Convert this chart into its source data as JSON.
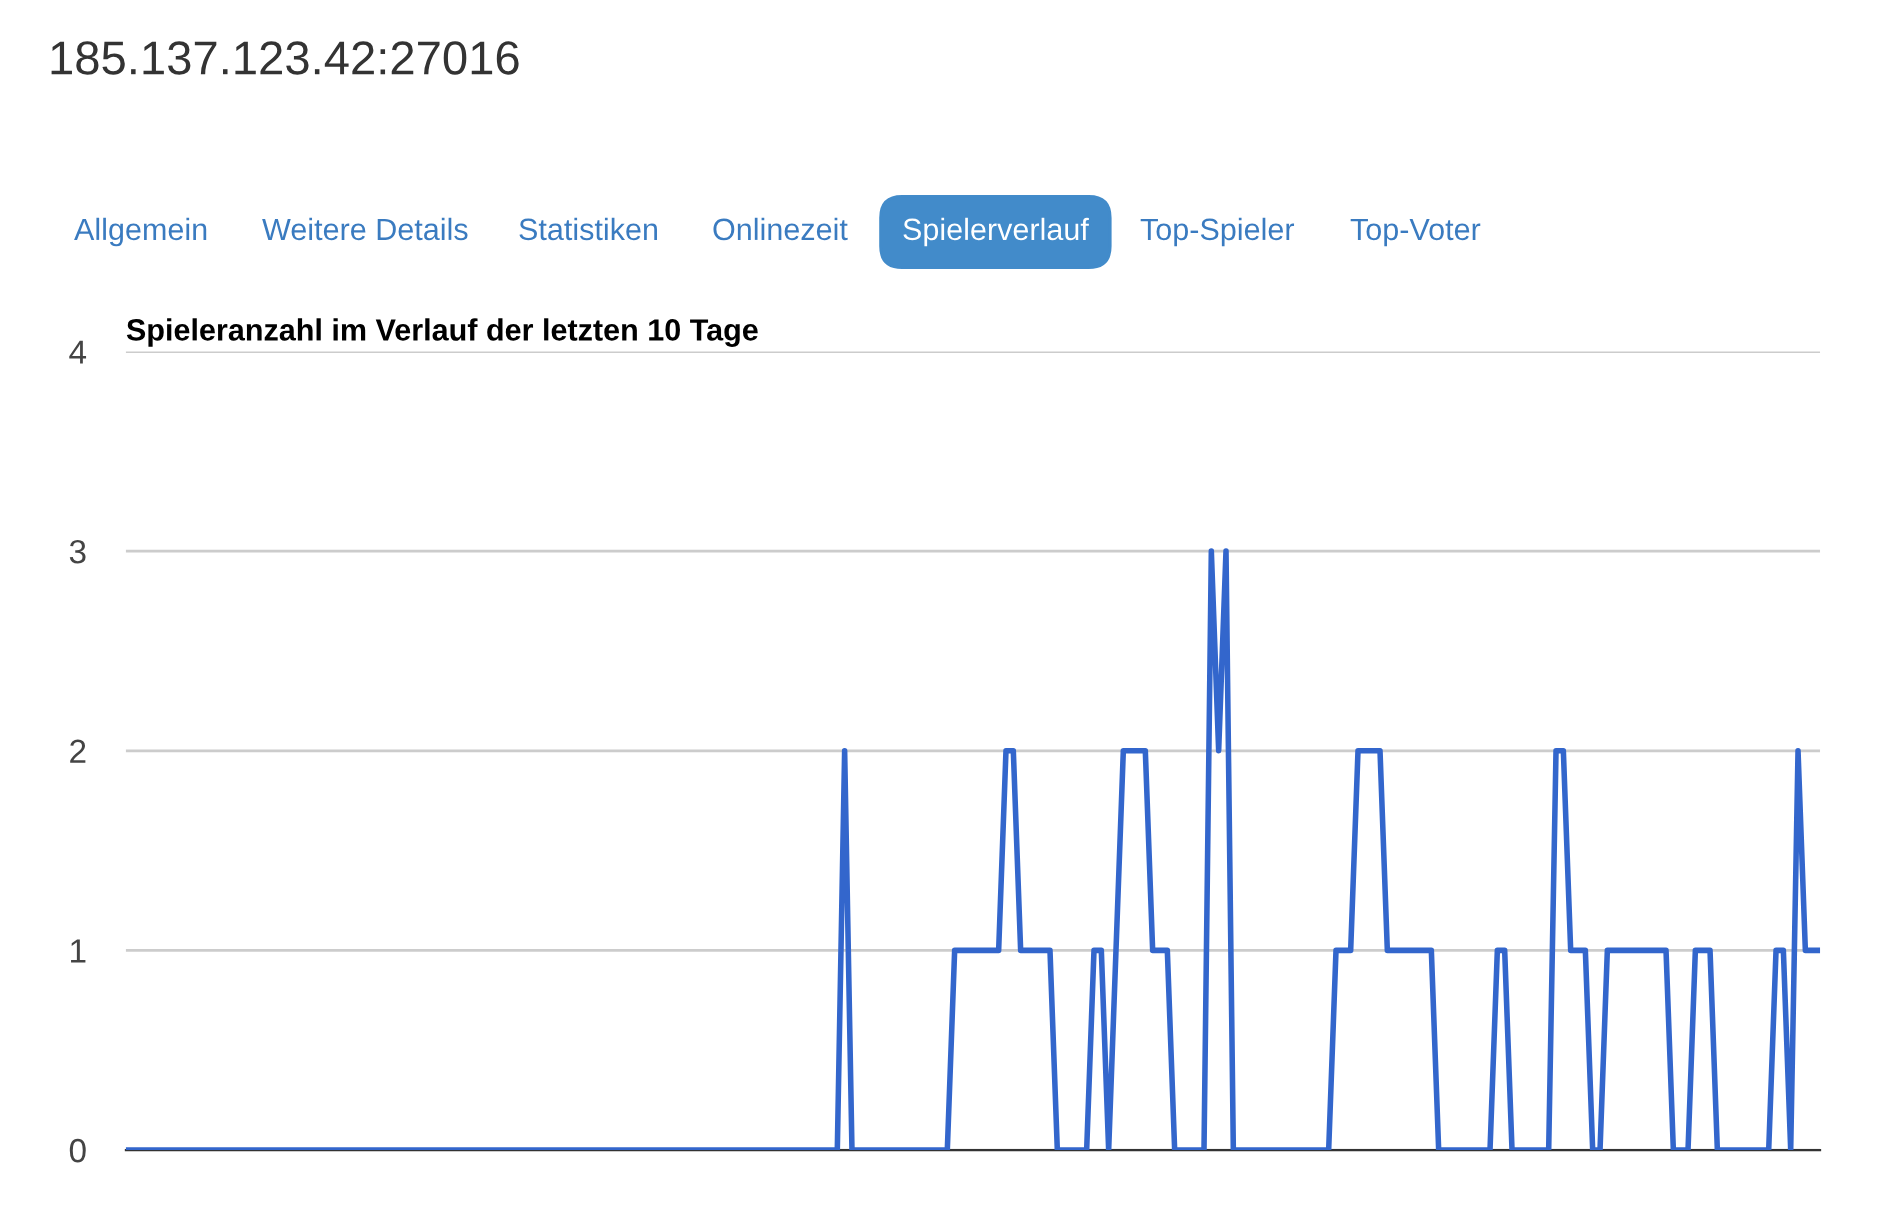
{
  "chart_data": {
    "type": "line",
    "title": "Spieleranzahl im Verlauf der letzten 10 Tage",
    "annotations": [
      "185.137.123.42:27016",
      "Allgemein",
      "Weitere Details",
      "Statistiken",
      "Onlinezeit",
      "Spielerverlauf",
      "Top-Spieler",
      "Top-Voter"
    ],
    "categories": [
      null,
      null,
      null,
      null,
      null,
      null,
      null,
      null,
      null,
      null,
      null,
      null,
      null,
      null,
      null,
      null,
      null,
      null,
      null,
      null,
      null,
      null,
      null,
      null,
      null,
      null,
      null,
      null,
      null,
      null,
      null,
      null,
      null,
      null,
      null,
      null,
      null,
      null,
      null,
      null,
      null,
      null,
      null,
      null,
      null,
      null,
      null,
      null,
      null,
      null,
      null,
      null,
      null,
      null,
      null,
      null,
      null,
      null,
      null,
      null,
      null,
      null,
      null,
      null,
      null,
      null,
      null,
      null,
      null,
      null,
      null,
      null,
      null,
      null,
      null,
      null,
      null,
      null,
      null,
      null,
      null,
      null,
      null,
      null,
      null,
      null,
      null,
      null,
      null,
      null,
      null,
      null,
      null,
      null,
      null,
      null,
      null,
      null,
      null,
      null,
      null,
      null,
      null,
      null,
      null,
      null,
      null,
      null,
      null,
      null,
      null,
      null,
      null,
      null,
      null,
      null,
      null,
      null,
      null,
      null,
      null,
      null,
      null,
      null,
      null,
      null,
      null,
      null,
      null,
      null,
      null,
      null,
      null,
      null,
      null,
      null,
      null,
      null,
      null,
      null,
      null,
      null,
      null,
      null,
      null,
      null,
      null,
      null,
      null,
      null,
      null,
      null,
      null,
      null,
      null,
      null,
      null,
      null,
      null,
      null,
      null,
      null,
      null,
      null,
      null,
      null,
      null,
      null,
      null,
      null,
      null,
      null,
      null,
      null,
      null,
      null,
      null,
      null,
      null,
      null,
      null,
      null,
      null,
      null,
      null,
      null,
      null,
      null,
      null,
      null,
      null,
      null,
      null,
      null,
      null,
      null,
      null,
      null,
      null,
      null,
      null,
      null,
      null,
      null,
      null,
      null,
      null,
      null,
      null,
      null,
      null,
      null,
      null,
      null,
      null,
      null,
      null,
      null,
      null,
      null,
      null,
      null,
      null,
      null,
      null,
      null,
      null,
      null,
      null,
      null,
      null,
      null
    ],
    "values": [
      0,
      0,
      0,
      0,
      0,
      0,
      0,
      0,
      0,
      0,
      0,
      0,
      0,
      0,
      0,
      0,
      0,
      0,
      0,
      0,
      0,
      0,
      0,
      0,
      0,
      0,
      0,
      0,
      0,
      0,
      0,
      0,
      0,
      0,
      0,
      0,
      0,
      0,
      0,
      0,
      0,
      0,
      0,
      0,
      0,
      0,
      0,
      0,
      0,
      0,
      0,
      0,
      0,
      0,
      0,
      0,
      0,
      0,
      0,
      0,
      0,
      0,
      0,
      0,
      0,
      0,
      0,
      0,
      0,
      0,
      0,
      0,
      0,
      0,
      0,
      0,
      0,
      0,
      0,
      0,
      0,
      0,
      0,
      0,
      0,
      0,
      0,
      0,
      0,
      0,
      0,
      0,
      0,
      0,
      0,
      0,
      0,
      0,
      2,
      0,
      0,
      0,
      0,
      0,
      0,
      0,
      0,
      0,
      0,
      0,
      0,
      0,
      0,
      1,
      1,
      1,
      1,
      1,
      1,
      1,
      2,
      2,
      1,
      1,
      1,
      1,
      1,
      0,
      0,
      0,
      0,
      0,
      1,
      1,
      0,
      1,
      2,
      2,
      2,
      2,
      1,
      1,
      1,
      0,
      0,
      0,
      0,
      0,
      3,
      2,
      3,
      0,
      0,
      0,
      0,
      0,
      0,
      0,
      0,
      0,
      0,
      0,
      0,
      0,
      0,
      1,
      1,
      1,
      2,
      2,
      2,
      2,
      1,
      1,
      1,
      1,
      1,
      1,
      1,
      0,
      0,
      0,
      0,
      0,
      0,
      0,
      0,
      1,
      1,
      0,
      0,
      0,
      0,
      0,
      0,
      2,
      2,
      1,
      1,
      1,
      0,
      0,
      1,
      1,
      1,
      1,
      1,
      1,
      1,
      1,
      1,
      0,
      0,
      0,
      1,
      1,
      1,
      0,
      0,
      0,
      0,
      0,
      0,
      0,
      0,
      1,
      1,
      0,
      2,
      1,
      1,
      1
    ],
    "color": "#3366cc",
    "ylim": [
      0,
      4
    ],
    "yticks": [
      0,
      1,
      2,
      3,
      4
    ],
    "grid": "y",
    "tick_labels": "y"
  }
}
